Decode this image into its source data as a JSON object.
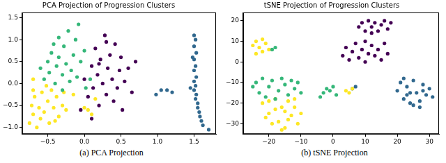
{
  "chart_data": [
    {
      "type": "scatter",
      "title": "PCA Projection of Progression Clusters",
      "caption": "(a) PCA Projection",
      "xlim": [
        -0.85,
        1.8
      ],
      "ylim": [
        -1.15,
        1.62
      ],
      "xticks": [
        {
          "value": -0.5,
          "label": "−0.5"
        },
        {
          "value": 0,
          "label": "0.0"
        },
        0.5,
        {
          "value": 1,
          "label": "1.0"
        },
        1.5
      ],
      "yticks": [
        {
          "value": -1,
          "label": "−1.0"
        },
        {
          "value": -0.5,
          "label": "−0.5"
        },
        {
          "value": 0,
          "label": "0.0"
        },
        0.5,
        {
          "value": 1,
          "label": "1.0"
        },
        1.5
      ],
      "grid": false,
      "series": [
        {
          "color": "#35b779",
          "values": [
            [
              -0.6,
              0.35
            ],
            [
              -0.55,
              0.1
            ],
            [
              -0.5,
              0.5
            ],
            [
              -0.48,
              0.25
            ],
            [
              -0.45,
              0.7
            ],
            [
              -0.4,
              0.0
            ],
            [
              -0.38,
              0.4
            ],
            [
              -0.35,
              0.6
            ],
            [
              -0.3,
              0.2
            ],
            [
              -0.28,
              0.85
            ],
            [
              -0.25,
              0.45
            ],
            [
              -0.2,
              0.05
            ],
            [
              -0.18,
              0.3
            ],
            [
              -0.15,
              0.65
            ],
            [
              -0.12,
              1.0
            ],
            [
              -0.1,
              0.15
            ],
            [
              -0.05,
              0.5
            ],
            [
              0.0,
              0.75
            ],
            [
              -0.08,
              1.35
            ],
            [
              -0.22,
              1.2
            ],
            [
              -0.35,
              1.05
            ],
            [
              -0.42,
              0.9
            ],
            [
              0.02,
              -0.1
            ],
            [
              -0.3,
              -0.15
            ],
            [
              0.08,
              0.1
            ]
          ]
        },
        {
          "color": "#fde725",
          "values": [
            [
              -0.75,
              -0.9
            ],
            [
              -0.7,
              -0.7
            ],
            [
              -0.72,
              -0.5
            ],
            [
              -0.68,
              -0.3
            ],
            [
              -0.6,
              -0.8
            ],
            [
              -0.62,
              -0.55
            ],
            [
              -0.58,
              -0.2
            ],
            [
              -0.55,
              -0.65
            ],
            [
              -0.5,
              -0.4
            ],
            [
              -0.48,
              -0.9
            ],
            [
              -0.45,
              -0.15
            ],
            [
              -0.42,
              -0.55
            ],
            [
              -0.38,
              -0.3
            ],
            [
              -0.35,
              -0.75
            ],
            [
              -0.3,
              -0.5
            ],
            [
              -0.65,
              -1.0
            ],
            [
              -0.7,
              -0.15
            ],
            [
              -0.52,
              -0.05
            ],
            [
              -0.4,
              -0.85
            ],
            [
              -0.28,
              -0.2
            ],
            [
              -0.25,
              -0.6
            ],
            [
              0.0,
              -0.55
            ],
            [
              0.05,
              -0.6
            ],
            [
              0.1,
              -0.7
            ],
            [
              0.15,
              -0.35
            ],
            [
              -0.15,
              -0.25
            ],
            [
              -0.7,
              0.1
            ]
          ]
        },
        {
          "color": "#440154",
          "values": [
            [
              0.0,
              0.1
            ],
            [
              0.05,
              -0.3
            ],
            [
              0.1,
              0.4
            ],
            [
              0.12,
              -0.1
            ],
            [
              0.15,
              0.8
            ],
            [
              0.18,
              0.2
            ],
            [
              0.2,
              -0.5
            ],
            [
              0.22,
              0.55
            ],
            [
              0.25,
              0.0
            ],
            [
              0.28,
              1.1
            ],
            [
              0.3,
              -0.25
            ],
            [
              0.32,
              0.35
            ],
            [
              0.35,
              0.65
            ],
            [
              0.38,
              0.1
            ],
            [
              0.4,
              -0.4
            ],
            [
              0.42,
              0.9
            ],
            [
              0.45,
              -0.1
            ],
            [
              0.48,
              0.3
            ],
            [
              0.5,
              0.6
            ],
            [
              0.52,
              -0.6
            ],
            [
              0.55,
              0.05
            ],
            [
              0.6,
              0.35
            ],
            [
              0.65,
              -0.2
            ],
            [
              0.3,
              0.95
            ],
            [
              -0.05,
              -0.6
            ],
            [
              0.1,
              -0.8
            ],
            [
              0.2,
              0.45
            ],
            [
              0.7,
              0.5
            ]
          ]
        },
        {
          "color": "#31688e",
          "values": [
            [
              1.5,
              1.1
            ],
            [
              1.52,
              1.0
            ],
            [
              1.5,
              0.85
            ],
            [
              1.53,
              0.7
            ],
            [
              1.5,
              0.55
            ],
            [
              1.52,
              0.4
            ],
            [
              1.5,
              0.3
            ],
            [
              1.53,
              0.15
            ],
            [
              1.5,
              0.05
            ],
            [
              1.52,
              -0.05
            ],
            [
              1.5,
              -0.15
            ],
            [
              1.53,
              -0.25
            ],
            [
              1.52,
              -0.35
            ],
            [
              1.55,
              -0.45
            ],
            [
              1.55,
              -0.55
            ],
            [
              1.57,
              -0.65
            ],
            [
              1.58,
              -0.75
            ],
            [
              1.6,
              -0.85
            ],
            [
              1.62,
              -0.95
            ],
            [
              1.7,
              -1.05
            ],
            [
              1.05,
              -0.15
            ],
            [
              1.13,
              -0.15
            ],
            [
              1.2,
              -0.2
            ],
            [
              0.98,
              -0.25
            ],
            [
              1.45,
              -0.1
            ],
            [
              1.48,
              0.6
            ]
          ]
        }
      ]
    },
    {
      "type": "scatter",
      "title": "tSNE Projection of Progression Clusters",
      "caption": "(b) tSNE Projection",
      "xlim": [
        -28,
        33
      ],
      "ylim": [
        -35,
        24
      ],
      "xticks": [
        {
          "value": -20,
          "label": "−20"
        },
        {
          "value": -10,
          "label": "−10"
        },
        0,
        10,
        20,
        30
      ],
      "yticks": [
        {
          "value": -30,
          "label": "−30"
        },
        {
          "value": -20,
          "label": "−20"
        },
        {
          "value": -10,
          "label": "−10"
        },
        0,
        10,
        20
      ],
      "grid": false,
      "series": [
        {
          "color": "#35b779",
          "values": [
            [
              -24,
              -10
            ],
            [
              -22,
              -8
            ],
            [
              -20,
              -12
            ],
            [
              -19,
              -9
            ],
            [
              -17,
              -14
            ],
            [
              -16,
              -8
            ],
            [
              -15,
              -11
            ],
            [
              -14,
              -16
            ],
            [
              -13,
              -9
            ],
            [
              -12,
              -13
            ],
            [
              -11,
              -10
            ],
            [
              -23,
              -15
            ],
            [
              -21,
              -17
            ],
            [
              -18,
              -18
            ],
            [
              -10,
              -15
            ],
            [
              -25,
              -12
            ],
            [
              -19,
              6
            ],
            [
              -18,
              7
            ],
            [
              -3,
              -15
            ],
            [
              -1,
              -14
            ],
            [
              1,
              -16
            ],
            [
              -2,
              -13
            ],
            [
              0,
              -12
            ],
            [
              -4,
              -17
            ]
          ]
        },
        {
          "color": "#fde725",
          "values": [
            [
              -22,
              -20
            ],
            [
              -20,
              -25
            ],
            [
              -18,
              -18
            ],
            [
              -17,
              -29
            ],
            [
              -16,
              -22
            ],
            [
              -15,
              -32
            ],
            [
              -14,
              -19
            ],
            [
              -13,
              -26
            ],
            [
              -12,
              -22
            ],
            [
              -11,
              -30
            ],
            [
              -19,
              -30
            ],
            [
              -21,
              -27
            ],
            [
              -15,
              -24
            ],
            [
              -12,
              -18
            ],
            [
              -18,
              -23
            ],
            [
              -14,
              -28
            ],
            [
              -10,
              -25
            ],
            [
              -20,
              -19
            ],
            [
              -16,
              -33
            ],
            [
              -24,
              10
            ],
            [
              -22,
              11
            ],
            [
              -21,
              9
            ],
            [
              -23,
              7
            ],
            [
              -20,
              6
            ],
            [
              -24,
              4
            ],
            [
              -22,
              5
            ],
            [
              -25,
              8
            ],
            [
              4,
              -14
            ],
            [
              6,
              -13
            ],
            [
              5,
              -15
            ]
          ]
        },
        {
          "color": "#440154",
          "values": [
            [
              3,
              3
            ],
            [
              4,
              7
            ],
            [
              5,
              1
            ],
            [
              6,
              5
            ],
            [
              7,
              9
            ],
            [
              8,
              2
            ],
            [
              9,
              6
            ],
            [
              10,
              0
            ],
            [
              11,
              4
            ],
            [
              12,
              8
            ],
            [
              13,
              3
            ],
            [
              14,
              6
            ],
            [
              15,
              1
            ],
            [
              16,
              9
            ],
            [
              17,
              4
            ],
            [
              10,
              10
            ],
            [
              8,
              17
            ],
            [
              9,
              19
            ],
            [
              10,
              15
            ],
            [
              11,
              20
            ],
            [
              12,
              17
            ],
            [
              13,
              19
            ],
            [
              14,
              15
            ],
            [
              15,
              18
            ],
            [
              16,
              20
            ],
            [
              17,
              16
            ],
            [
              18,
              19
            ],
            [
              12,
              14
            ]
          ]
        },
        {
          "color": "#31688e",
          "values": [
            [
              20,
              -14
            ],
            [
              21,
              -10
            ],
            [
              22,
              -18
            ],
            [
              23,
              -12
            ],
            [
              24,
              -20
            ],
            [
              25,
              -9
            ],
            [
              26,
              -15
            ],
            [
              27,
              -19
            ],
            [
              28,
              -11
            ],
            [
              29,
              -16
            ],
            [
              30,
              -13
            ],
            [
              31,
              -17
            ],
            [
              24,
              -15
            ],
            [
              27,
              -22
            ],
            [
              22,
              -8
            ],
            [
              25,
              -21
            ],
            [
              28,
              -14
            ],
            [
              23,
              -16
            ],
            [
              6,
              -13
            ],
            [
              7,
              -12
            ]
          ]
        }
      ]
    }
  ]
}
